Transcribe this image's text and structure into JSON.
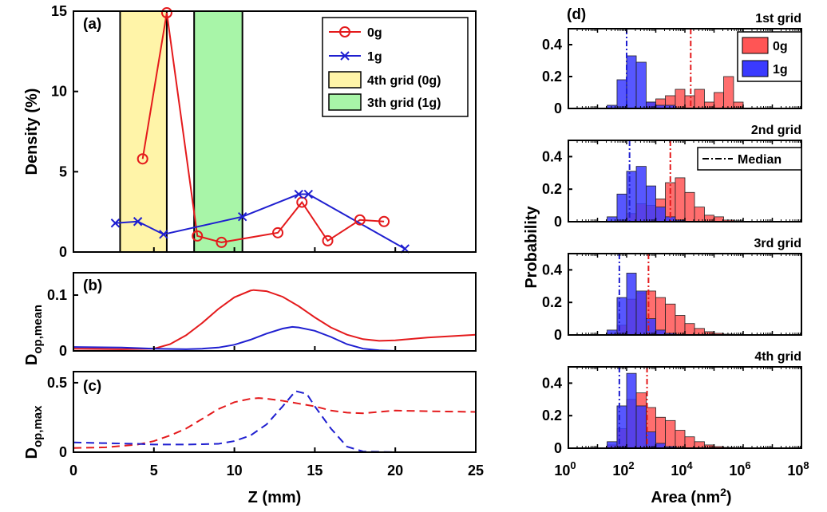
{
  "chart_data": [
    {
      "type": "line",
      "panel_label": "(a)",
      "xlabel": "",
      "ylabel": "Density (%)",
      "xlim": [
        0,
        25
      ],
      "ylim": [
        0,
        15
      ],
      "yticks": [
        "0",
        "5",
        "10",
        "15"
      ],
      "legend": {
        "position": "top-right",
        "entries": [
          "0g",
          "1g",
          "4th grid (0g)",
          "3th grid (1g)"
        ]
      },
      "series": [
        {
          "name": "0g",
          "color": "#e41a1c",
          "marker": "circle",
          "x": [
            4.3,
            5.8,
            7.7,
            9.2,
            12.7,
            14.2,
            15.8,
            17.8,
            19.3
          ],
          "y": [
            5.8,
            14.9,
            1.0,
            0.6,
            1.2,
            3.1,
            0.7,
            2.0,
            1.9
          ]
        },
        {
          "name": "1g",
          "color": "#1f1fd0",
          "marker": "x",
          "x": [
            2.6,
            4.0,
            5.6,
            10.5,
            14.0,
            14.6,
            20.6
          ],
          "y": [
            1.8,
            1.9,
            1.1,
            2.2,
            3.6,
            3.6,
            0.2
          ]
        }
      ],
      "shaded_regions": [
        {
          "name": "4th grid (0g)",
          "x0": 2.9,
          "x1": 5.8,
          "color": "#fff4a8"
        },
        {
          "name": "3th grid (1g)",
          "x0": 7.5,
          "x1": 10.5,
          "color": "#a8f5a8"
        }
      ]
    },
    {
      "type": "line",
      "panel_label": "(b)",
      "ylabel_main": "D",
      "ylabel_sub": "op,mean",
      "xlim": [
        0,
        25
      ],
      "ylim": [
        0,
        0.14
      ],
      "yticks": [
        "0",
        "0.1"
      ],
      "series": [
        {
          "name": "0g",
          "color": "#e41a1c",
          "style": "solid",
          "x": [
            0,
            3,
            5,
            6,
            7,
            8,
            9,
            10,
            11,
            11.2,
            12,
            13,
            14,
            15,
            16,
            17,
            18,
            19,
            20,
            22,
            25
          ],
          "y": [
            0.004,
            0.003,
            0.004,
            0.012,
            0.028,
            0.05,
            0.075,
            0.096,
            0.108,
            0.109,
            0.107,
            0.097,
            0.08,
            0.06,
            0.042,
            0.029,
            0.021,
            0.018,
            0.019,
            0.024,
            0.029
          ]
        },
        {
          "name": "1g",
          "color": "#1f1fd0",
          "style": "solid",
          "x": [
            0,
            3,
            5,
            7,
            8,
            9,
            10,
            11,
            12,
            13,
            13.6,
            14,
            15,
            16,
            17,
            18,
            19,
            20,
            25
          ],
          "y": [
            0.007,
            0.006,
            0.004,
            0.003,
            0.004,
            0.006,
            0.011,
            0.02,
            0.031,
            0.04,
            0.043,
            0.042,
            0.036,
            0.025,
            0.012,
            0.004,
            0.001,
            0.0,
            0.0
          ]
        }
      ]
    },
    {
      "type": "line",
      "panel_label": "(c)",
      "ylabel_main": "D",
      "ylabel_sub": "op,max",
      "xlabel": "Z (mm)",
      "xlim": [
        0,
        25
      ],
      "xticks": [
        "0",
        "5",
        "10",
        "15",
        "20",
        "25"
      ],
      "ylim": [
        0,
        0.58
      ],
      "yticks": [
        "0",
        "0.5"
      ],
      "series": [
        {
          "name": "0g",
          "color": "#e41a1c",
          "style": "dashed",
          "x": [
            0,
            2,
            4,
            5,
            6,
            7,
            8,
            9,
            10,
            11,
            11.5,
            12,
            13,
            14,
            15,
            16,
            17,
            18,
            20,
            22,
            25
          ],
          "y": [
            0.03,
            0.035,
            0.055,
            0.08,
            0.12,
            0.17,
            0.24,
            0.31,
            0.36,
            0.385,
            0.39,
            0.385,
            0.37,
            0.35,
            0.33,
            0.3,
            0.285,
            0.28,
            0.3,
            0.295,
            0.29
          ]
        },
        {
          "name": "1g",
          "color": "#1f1fd0",
          "style": "dashed",
          "x": [
            0,
            2,
            4,
            5,
            7,
            9,
            10,
            11,
            12,
            13,
            13.8,
            14.5,
            15,
            16,
            17,
            18,
            20,
            25
          ],
          "y": [
            0.07,
            0.065,
            0.06,
            0.055,
            0.055,
            0.06,
            0.08,
            0.12,
            0.2,
            0.33,
            0.44,
            0.42,
            0.33,
            0.17,
            0.04,
            0.005,
            0.0,
            0.0
          ]
        }
      ]
    },
    {
      "type": "bar",
      "panel_label": "(d)",
      "ylabel": "Probability",
      "xlabel_main": "Area (nm",
      "xlabel_sup": "2",
      "xlabel_close": ")",
      "xscale": "log",
      "xlim_log10": [
        0,
        8
      ],
      "xtick_exponents": [
        "0",
        "2",
        "4",
        "6",
        "8"
      ],
      "xtick_base": "10",
      "ylim": [
        0,
        0.5
      ],
      "yticks": [
        "0",
        "0.2",
        "0.4"
      ],
      "legend_entries": [
        "0g",
        "1g"
      ],
      "median_legend": "Median",
      "colors": {
        "0g": "#ff5555",
        "1g": "#3a3aff",
        "median_0g": "#e41a1c",
        "median_1g": "#1f1fd0"
      },
      "bin_edges_log10": [
        0.0,
        0.33,
        0.67,
        1.0,
        1.33,
        1.67,
        2.0,
        2.33,
        2.67,
        3.0,
        3.33,
        3.67,
        4.0,
        4.33,
        4.67,
        5.0,
        5.33,
        5.67,
        6.0,
        6.33,
        6.67,
        7.0,
        7.33,
        7.67,
        8.0
      ],
      "grids": [
        {
          "title": "1st grid",
          "median_0g_log10": 4.2,
          "median_1g_log10": 2.0,
          "values_0g": [
            0,
            0,
            0,
            0,
            0,
            0,
            0,
            0,
            0.04,
            0.06,
            0.08,
            0.12,
            0.08,
            0.12,
            0.04,
            0.1,
            0.2,
            0.04,
            0.0,
            0,
            0,
            0,
            0,
            0
          ],
          "values_1g": [
            0,
            0,
            0,
            0,
            0.02,
            0.18,
            0.33,
            0.29,
            0.04,
            0.02,
            0.02,
            0.0,
            0.0,
            0,
            0,
            0,
            0,
            0,
            0,
            0,
            0,
            0,
            0,
            0
          ]
        },
        {
          "title": "2nd grid",
          "median_0g_log10": 3.5,
          "median_1g_log10": 2.1,
          "values_0g": [
            0,
            0,
            0,
            0,
            0,
            0.01,
            0.05,
            0.11,
            0.1,
            0.14,
            0.24,
            0.27,
            0.18,
            0.09,
            0.04,
            0.03,
            0.01,
            0.005,
            0,
            0,
            0,
            0,
            0,
            0
          ],
          "values_1g": [
            0,
            0,
            0,
            0,
            0.03,
            0.17,
            0.31,
            0.34,
            0.22,
            0.09,
            0.03,
            0.01,
            0.0,
            0,
            0,
            0,
            0,
            0,
            0,
            0,
            0,
            0,
            0,
            0
          ]
        },
        {
          "title": "3rd grid",
          "median_0g_log10": 2.75,
          "median_1g_log10": 1.75,
          "values_0g": [
            0,
            0,
            0,
            0,
            0.01,
            0.06,
            0.22,
            0.26,
            0.27,
            0.23,
            0.19,
            0.12,
            0.07,
            0.04,
            0.02,
            0.01,
            0.005,
            0,
            0,
            0,
            0,
            0,
            0,
            0
          ],
          "values_1g": [
            0,
            0,
            0,
            0,
            0.03,
            0.23,
            0.38,
            0.27,
            0.1,
            0.03,
            0.01,
            0.0,
            0,
            0,
            0,
            0,
            0,
            0,
            0,
            0,
            0,
            0,
            0,
            0
          ]
        },
        {
          "title": "4th grid",
          "median_0g_log10": 2.7,
          "median_1g_log10": 1.75,
          "values_0g": [
            0,
            0,
            0,
            0,
            0.02,
            0.12,
            0.3,
            0.34,
            0.25,
            0.19,
            0.17,
            0.11,
            0.07,
            0.04,
            0.02,
            0.01,
            0.005,
            0,
            0,
            0,
            0,
            0,
            0,
            0
          ],
          "values_1g": [
            0,
            0,
            0,
            0,
            0.04,
            0.26,
            0.46,
            0.26,
            0.1,
            0.03,
            0.01,
            0.0,
            0,
            0,
            0,
            0,
            0,
            0,
            0,
            0,
            0,
            0,
            0,
            0
          ]
        }
      ]
    }
  ]
}
